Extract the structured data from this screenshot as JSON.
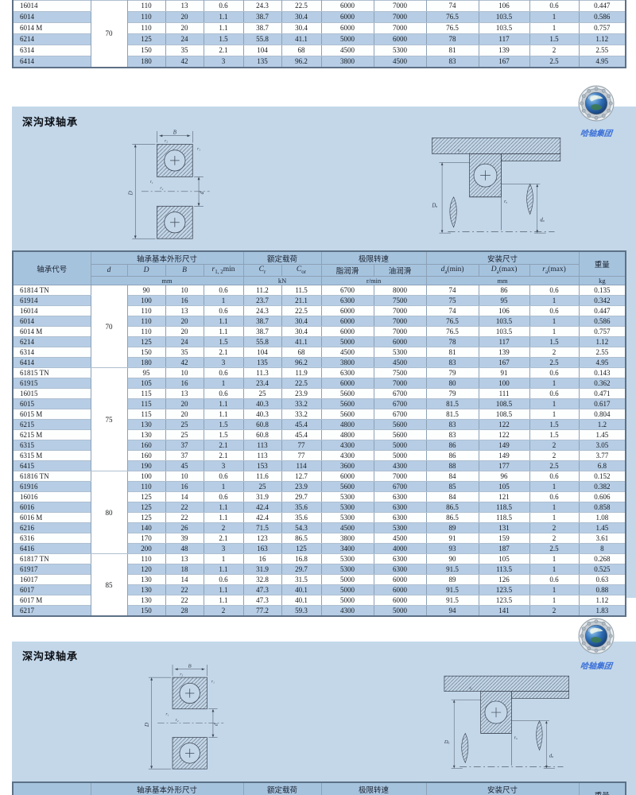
{
  "brand": {
    "logo_text": "哈轴集团"
  },
  "section_title": "深沟球轴承",
  "colors": {
    "panel_bg": "#c3d7e9",
    "row_stripe_blue": "#b6cde5",
    "header_blue": "#a6c3de",
    "logo_text_blue": "#3a6fd8"
  },
  "table_headers": {
    "code": "轴承代号",
    "group_dims": "轴承基本外形尺寸",
    "group_load": "额定载荷",
    "group_speed": "极限转速",
    "group_mount": "安装尺寸",
    "weight": "重量",
    "d": "d",
    "D": "D",
    "B": "B",
    "r_base": "r",
    "r_sub": "1, 2",
    "r_suffix": "min",
    "cr_base": "C",
    "cr_sub": "r",
    "cor_base": "C",
    "cor_sub": "or",
    "grease": "脂润滑",
    "oil": "油润滑",
    "da_base": "d",
    "da_sub": "a",
    "da_suffix": "(min)",
    "Da_base": "D",
    "Da_sub": "a",
    "Da_suffix": "(max)",
    "ra_base": "r",
    "ra_sub": "a",
    "ra_suffix": "(max)",
    "unit_mm": "mm",
    "unit_kn": "kN",
    "unit_rpm": "r/min",
    "unit_kg": "kg"
  },
  "diagram_labels": {
    "B": "B",
    "D": "D",
    "d": "d",
    "r1": "r₁",
    "r2": "r₂",
    "ra": "rₐ",
    "Da": "Dₐ",
    "da": "dₐ"
  },
  "top_table": {
    "groups": [
      {
        "d": "70",
        "rows": [
          [
            "16014",
            "110",
            "13",
            "0.6",
            "24.3",
            "22.5",
            "6000",
            "7000",
            "74",
            "106",
            "0.6",
            "0.447"
          ],
          [
            "6014",
            "110",
            "20",
            "1.1",
            "38.7",
            "30.4",
            "6000",
            "7000",
            "76.5",
            "103.5",
            "1",
            "0.586"
          ],
          [
            "6014 M",
            "110",
            "20",
            "1.1",
            "38.7",
            "30.4",
            "6000",
            "7000",
            "76.5",
            "103.5",
            "1",
            "0.757"
          ],
          [
            "6214",
            "125",
            "24",
            "1.5",
            "55.8",
            "41.1",
            "5000",
            "6000",
            "78",
            "117",
            "1.5",
            "1.12"
          ],
          [
            "6314",
            "150",
            "35",
            "2.1",
            "104",
            "68",
            "4500",
            "5300",
            "81",
            "139",
            "2",
            "2.55"
          ],
          [
            "6414",
            "180",
            "42",
            "3",
            "135",
            "96.2",
            "3800",
            "4500",
            "83",
            "167",
            "2.5",
            "4.95"
          ]
        ]
      }
    ]
  },
  "main_table": {
    "groups": [
      {
        "d": "70",
        "rows": [
          [
            "61814 TN",
            "90",
            "10",
            "0.6",
            "11.2",
            "11.5",
            "6700",
            "8000",
            "74",
            "86",
            "0.6",
            "0.135"
          ],
          [
            "61914",
            "100",
            "16",
            "1",
            "23.7",
            "21.1",
            "6300",
            "7500",
            "75",
            "95",
            "1",
            "0.342"
          ],
          [
            "16014",
            "110",
            "13",
            "0.6",
            "24.3",
            "22.5",
            "6000",
            "7000",
            "74",
            "106",
            "0.6",
            "0.447"
          ],
          [
            "6014",
            "110",
            "20",
            "1.1",
            "38.7",
            "30.4",
            "6000",
            "7000",
            "76.5",
            "103.5",
            "1",
            "0.586"
          ],
          [
            "6014 M",
            "110",
            "20",
            "1.1",
            "38.7",
            "30.4",
            "6000",
            "7000",
            "76.5",
            "103.5",
            "1",
            "0.757"
          ],
          [
            "6214",
            "125",
            "24",
            "1.5",
            "55.8",
            "41.1",
            "5000",
            "6000",
            "78",
            "117",
            "1.5",
            "1.12"
          ],
          [
            "6314",
            "150",
            "35",
            "2.1",
            "104",
            "68",
            "4500",
            "5300",
            "81",
            "139",
            "2",
            "2.55"
          ],
          [
            "6414",
            "180",
            "42",
            "3",
            "135",
            "96.2",
            "3800",
            "4500",
            "83",
            "167",
            "2.5",
            "4.95"
          ]
        ]
      },
      {
        "d": "75",
        "rows": [
          [
            "61815 TN",
            "95",
            "10",
            "0.6",
            "11.3",
            "11.9",
            "6300",
            "7500",
            "79",
            "91",
            "0.6",
            "0.143"
          ],
          [
            "61915",
            "105",
            "16",
            "1",
            "23.4",
            "22.5",
            "6000",
            "7000",
            "80",
            "100",
            "1",
            "0.362"
          ],
          [
            "16015",
            "115",
            "13",
            "0.6",
            "25",
            "23.9",
            "5600",
            "6700",
            "79",
            "111",
            "0.6",
            "0.471"
          ],
          [
            "6015",
            "115",
            "20",
            "1.1",
            "40.3",
            "33.2",
            "5600",
            "6700",
            "81.5",
            "108.5",
            "1",
            "0.617"
          ],
          [
            "6015 M",
            "115",
            "20",
            "1.1",
            "40.3",
            "33.2",
            "5600",
            "6700",
            "81.5",
            "108.5",
            "1",
            "0.804"
          ],
          [
            "6215",
            "130",
            "25",
            "1.5",
            "60.8",
            "45.4",
            "4800",
            "5600",
            "83",
            "122",
            "1.5",
            "1.2"
          ],
          [
            "6215 M",
            "130",
            "25",
            "1.5",
            "60.8",
            "45.4",
            "4800",
            "5600",
            "83",
            "122",
            "1.5",
            "1.45"
          ],
          [
            "6315",
            "160",
            "37",
            "2.1",
            "113",
            "77",
            "4300",
            "5000",
            "86",
            "149",
            "2",
            "3.05"
          ],
          [
            "6315 M",
            "160",
            "37",
            "2.1",
            "113",
            "77",
            "4300",
            "5000",
            "86",
            "149",
            "2",
            "3.77"
          ],
          [
            "6415",
            "190",
            "45",
            "3",
            "153",
            "114",
            "3600",
            "4300",
            "88",
            "177",
            "2.5",
            "6.8"
          ]
        ]
      },
      {
        "d": "80",
        "rows": [
          [
            "61816 TN",
            "100",
            "10",
            "0.6",
            "11.6",
            "12.7",
            "6000",
            "7000",
            "84",
            "96",
            "0.6",
            "0.152"
          ],
          [
            "61916",
            "110",
            "16",
            "1",
            "25",
            "23.9",
            "5600",
            "6700",
            "85",
            "105",
            "1",
            "0.382"
          ],
          [
            "16016",
            "125",
            "14",
            "0.6",
            "31.9",
            "29.7",
            "5300",
            "6300",
            "84",
            "121",
            "0.6",
            "0.606"
          ],
          [
            "6016",
            "125",
            "22",
            "1.1",
            "42.4",
            "35.6",
            "5300",
            "6300",
            "86.5",
            "118.5",
            "1",
            "0.858"
          ],
          [
            "6016 M",
            "125",
            "22",
            "1.1",
            "42.4",
            "35.6",
            "5300",
            "6300",
            "86.5",
            "118.5",
            "1",
            "1.08"
          ],
          [
            "6216",
            "140",
            "26",
            "2",
            "71.5",
            "54.3",
            "4500",
            "5300",
            "89",
            "131",
            "2",
            "1.45"
          ],
          [
            "6316",
            "170",
            "39",
            "2.1",
            "123",
            "86.5",
            "3800",
            "4500",
            "91",
            "159",
            "2",
            "3.61"
          ],
          [
            "6416",
            "200",
            "48",
            "3",
            "163",
            "125",
            "3400",
            "4000",
            "93",
            "187",
            "2.5",
            "8"
          ]
        ]
      },
      {
        "d": "85",
        "rows": [
          [
            "61817 TN",
            "110",
            "13",
            "1",
            "16",
            "16.8",
            "5300",
            "6300",
            "90",
            "105",
            "1",
            "0.268"
          ],
          [
            "61917",
            "120",
            "18",
            "1.1",
            "31.9",
            "29.7",
            "5300",
            "6300",
            "91.5",
            "113.5",
            "1",
            "0.525"
          ],
          [
            "16017",
            "130",
            "14",
            "0.6",
            "32.8",
            "31.5",
            "5000",
            "6000",
            "89",
            "126",
            "0.6",
            "0.63"
          ],
          [
            "6017",
            "130",
            "22",
            "1.1",
            "47.3",
            "40.1",
            "5000",
            "6000",
            "91.5",
            "123.5",
            "1",
            "0.88"
          ],
          [
            "6017 M",
            "130",
            "22",
            "1.1",
            "47.3",
            "40.1",
            "5000",
            "6000",
            "91.5",
            "123.5",
            "1",
            "1.12"
          ],
          [
            "6217",
            "150",
            "28",
            "2",
            "77.2",
            "59.3",
            "4300",
            "5000",
            "94",
            "141",
            "2",
            "1.83"
          ]
        ]
      }
    ]
  }
}
